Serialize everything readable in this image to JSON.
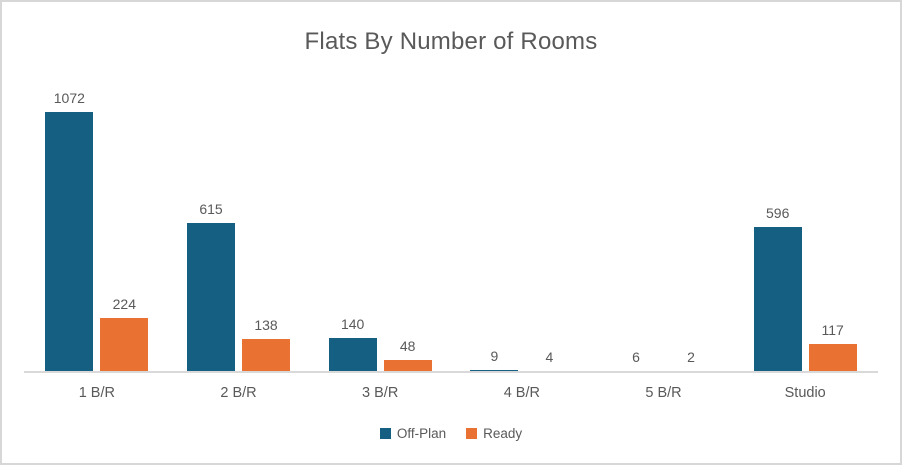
{
  "chart_data": {
    "type": "bar",
    "title": "Flats By Number of Rooms",
    "categories": [
      "1 B/R",
      "2 B/R",
      "3 B/R",
      "4 B/R",
      "5 B/R",
      "Studio"
    ],
    "series": [
      {
        "name": "Off-Plan",
        "color": "#156082",
        "values": [
          1072,
          615,
          140,
          9,
          6,
          596
        ]
      },
      {
        "name": "Ready",
        "color": "#E97132",
        "values": [
          224,
          138,
          48,
          4,
          2,
          117
        ]
      }
    ],
    "ylim": [
      0,
      1120
    ],
    "grid": false,
    "data_labels": true,
    "legend_position": "bottom",
    "axis_line_color": "#D9D9D9",
    "text_color": "#595959"
  }
}
